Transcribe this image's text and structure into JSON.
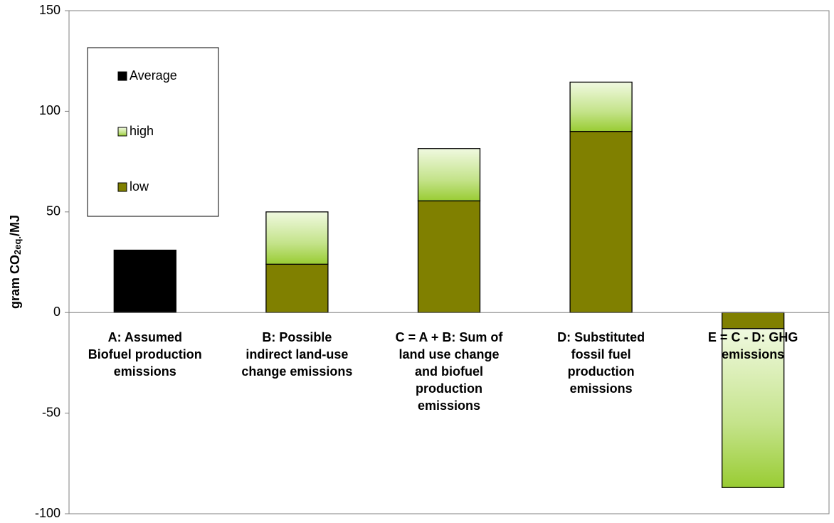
{
  "chart_data": {
    "type": "bar",
    "stacked": true,
    "y_label": [
      "gram CO",
      "2eq.",
      "/MJ"
    ],
    "categories": [
      "A: Assumed Biofuel production emissions",
      "B: Possible indirect land-use change emissions",
      "C = A + B: Sum of land use change and biofuel production emissions",
      "D: Substituted fossil fuel production emissions",
      "E = C - D: GHG emissions"
    ],
    "series": [
      {
        "name": "Average",
        "color": "#000000",
        "values": [
          31,
          null,
          null,
          null,
          null
        ]
      },
      {
        "name": "high",
        "color": "#99cc33",
        "values": [
          null,
          26,
          26,
          24.5,
          -79
        ]
      },
      {
        "name": "low",
        "color": "#808000",
        "values": [
          null,
          24,
          55.5,
          90,
          -8
        ]
      }
    ],
    "ylim": [
      -100,
      150
    ],
    "yticks": [
      -100,
      -50,
      0,
      50,
      100,
      150
    ],
    "grid": false
  }
}
